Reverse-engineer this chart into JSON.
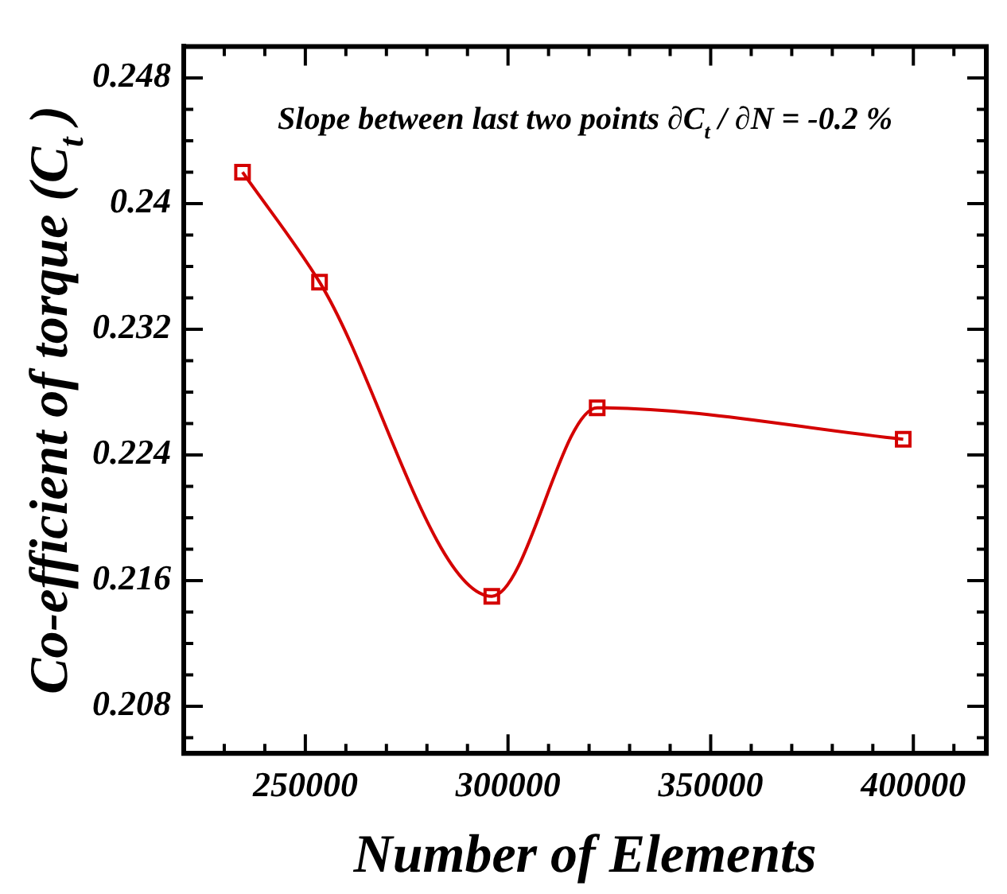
{
  "chart_data": {
    "type": "line",
    "xlabel": "Number of Elements",
    "ylabel": "Co-efficient of torque (C$_{t}$ )",
    "annotations": [
      "Slope between last two points ∂C$_{t}$ / ∂N = -0.2 %"
    ],
    "x": [
      234500,
      253500,
      296000,
      322000,
      397500
    ],
    "series": [
      {
        "color": "#d40000",
        "values": [
          0.242,
          0.235,
          0.215,
          0.227,
          0.225
        ]
      }
    ],
    "marker": "square",
    "line_style": "solid",
    "grid": false,
    "legend": false,
    "xlim": [
      220000,
      418000
    ],
    "xticks": [
      {
        "value": 230000,
        "label": null
      },
      {
        "value": 240000,
        "label": null
      },
      250000,
      {
        "value": 260000,
        "label": null
      },
      {
        "value": 270000,
        "label": null
      },
      {
        "value": 280000,
        "label": null
      },
      {
        "value": 290000,
        "label": null
      },
      300000,
      {
        "value": 310000,
        "label": null
      },
      {
        "value": 320000,
        "label": null
      },
      {
        "value": 330000,
        "label": null
      },
      {
        "value": 340000,
        "label": null
      },
      350000,
      {
        "value": 360000,
        "label": null
      },
      {
        "value": 370000,
        "label": null
      },
      {
        "value": 380000,
        "label": null
      },
      {
        "value": 390000,
        "label": null
      },
      400000,
      {
        "value": 410000,
        "label": null
      }
    ],
    "ylim": [
      0.205,
      0.25
    ],
    "yticks": [
      {
        "value": 0.206,
        "label": null
      },
      0.208,
      {
        "value": 0.21,
        "label": null
      },
      {
        "value": 0.212,
        "label": null
      },
      {
        "value": 0.214,
        "label": null
      },
      0.216,
      {
        "value": 0.218,
        "label": null
      },
      {
        "value": 0.22,
        "label": null
      },
      {
        "value": 0.222,
        "label": null
      },
      0.224,
      {
        "value": 0.226,
        "label": null
      },
      {
        "value": 0.228,
        "label": null
      },
      {
        "value": 0.23,
        "label": null
      },
      0.232,
      {
        "value": 0.234,
        "label": null
      },
      {
        "value": 0.236,
        "label": null
      },
      {
        "value": 0.238,
        "label": null
      },
      0.24,
      {
        "value": 0.242,
        "label": null
      },
      {
        "value": 0.244,
        "label": null
      },
      {
        "value": 0.246,
        "label": null
      },
      0.248
    ]
  }
}
